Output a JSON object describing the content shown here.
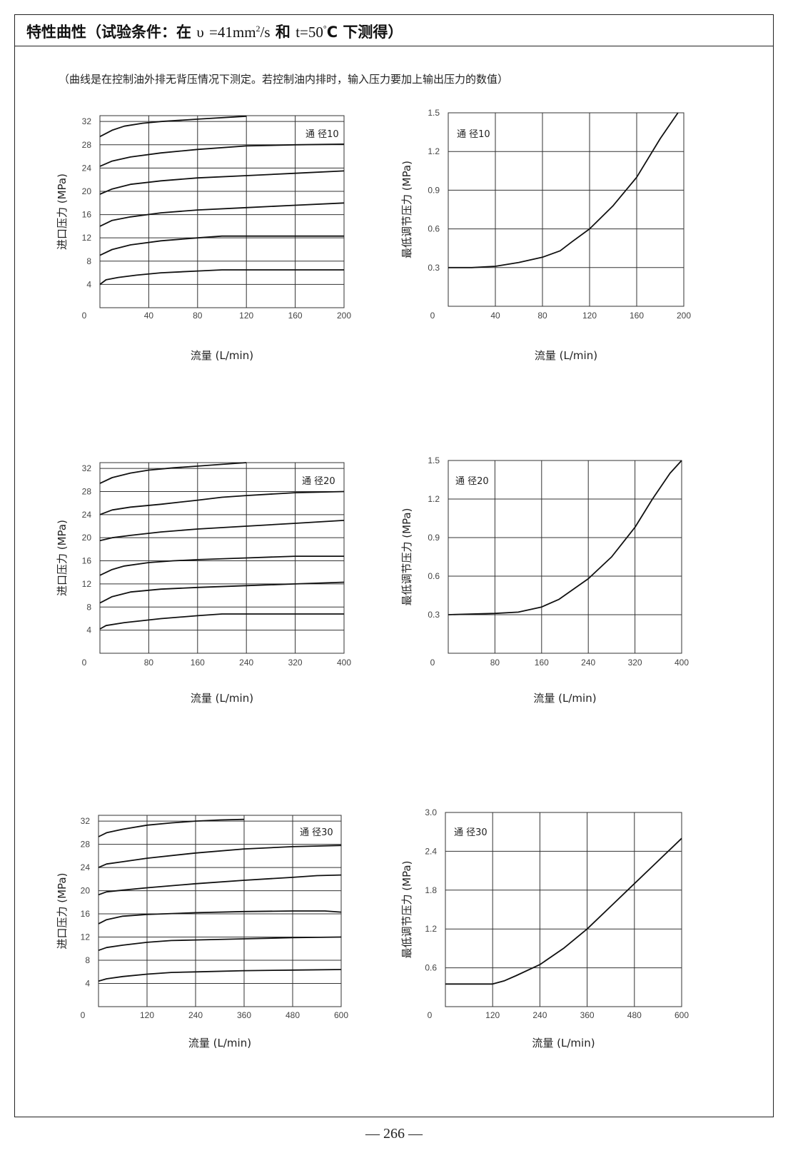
{
  "header": {
    "title_prefix": "特性曲性（试验条件：在",
    "nu": "υ",
    "nu_value": "=41mm",
    "nu_sup": "2",
    "nu_unit": "/s",
    "and": "和",
    "t_value": "t=50",
    "t_sup": "°",
    "t_unit": "C",
    "title_suffix": "下测得）"
  },
  "note": "（曲线是在控制油外排无背压情况下测定。若控制油内排时，输入压力要加上输出压力的数值）",
  "page_number": "— 266 —",
  "chart_data": [
    {
      "type": "line",
      "ylabel": "进口压力 (MPa)",
      "xlabel": "流量 (L/min)",
      "label": "通 径10",
      "x_ticks": [
        "0",
        "40",
        "80",
        "120",
        "160",
        "200"
      ],
      "y_ticks": [
        "4",
        "8",
        "12",
        "16",
        "20",
        "24",
        "28",
        "32"
      ],
      "xlim": [
        0,
        200
      ],
      "ylim": [
        0,
        33
      ],
      "series": [
        {
          "x": [
            0,
            10,
            20,
            35,
            50,
            80,
            120
          ],
          "y": [
            29.4,
            30.5,
            31.2,
            31.7,
            32.0,
            32.4,
            32.9
          ]
        },
        {
          "x": [
            0,
            10,
            25,
            50,
            80,
            120,
            160,
            200
          ],
          "y": [
            24.3,
            25.2,
            25.9,
            26.6,
            27.2,
            27.8,
            28.0,
            28.1
          ]
        },
        {
          "x": [
            0,
            10,
            25,
            50,
            80,
            120,
            160,
            200
          ],
          "y": [
            19.5,
            20.4,
            21.2,
            21.8,
            22.3,
            22.7,
            23.1,
            23.5
          ]
        },
        {
          "x": [
            0,
            10,
            25,
            50,
            80,
            120,
            160,
            200
          ],
          "y": [
            14.0,
            15.0,
            15.6,
            16.3,
            16.8,
            17.2,
            17.6,
            18.0
          ]
        },
        {
          "x": [
            0,
            10,
            25,
            50,
            80,
            100,
            120,
            160,
            200
          ],
          "y": [
            9.0,
            10.0,
            10.8,
            11.5,
            12.0,
            12.3,
            12.3,
            12.3,
            12.3
          ]
        },
        {
          "x": [
            0,
            5,
            15,
            30,
            50,
            80,
            100,
            140,
            200
          ],
          "y": [
            4.0,
            4.8,
            5.2,
            5.6,
            6.0,
            6.3,
            6.5,
            6.5,
            6.5
          ]
        }
      ]
    },
    {
      "type": "line",
      "ylabel": "最低调节压力 (MPa)",
      "xlabel": "流量 (L/min)",
      "label": "通 径10",
      "x_ticks": [
        "0",
        "40",
        "80",
        "120",
        "160",
        "200"
      ],
      "y_ticks": [
        "0.3",
        "0.6",
        "0.9",
        "1.2",
        "1.5"
      ],
      "xlim": [
        0,
        200
      ],
      "ylim": [
        0,
        1.5
      ],
      "series": [
        {
          "x": [
            0,
            20,
            40,
            60,
            80,
            95,
            105,
            120,
            140,
            160,
            180,
            195
          ],
          "y": [
            0.3,
            0.3,
            0.31,
            0.34,
            0.38,
            0.43,
            0.5,
            0.6,
            0.78,
            1.0,
            1.3,
            1.5
          ]
        }
      ]
    },
    {
      "type": "line",
      "ylabel": "进口压力 (MPa)",
      "xlabel": "流量 (L/min)",
      "label": "通 径20",
      "x_ticks": [
        "0",
        "80",
        "160",
        "240",
        "320",
        "400"
      ],
      "y_ticks": [
        "4",
        "8",
        "12",
        "16",
        "20",
        "24",
        "28",
        "32"
      ],
      "xlim": [
        0,
        400
      ],
      "ylim": [
        0,
        33
      ],
      "series": [
        {
          "x": [
            0,
            20,
            50,
            80,
            120,
            160,
            200,
            240
          ],
          "y": [
            29.4,
            30.4,
            31.2,
            31.7,
            32.1,
            32.4,
            32.7,
            33.0
          ]
        },
        {
          "x": [
            0,
            20,
            50,
            100,
            160,
            200,
            240,
            320,
            400
          ],
          "y": [
            24.0,
            24.8,
            25.3,
            25.8,
            26.5,
            27.0,
            27.3,
            27.8,
            28.0
          ]
        },
        {
          "x": [
            0,
            20,
            50,
            100,
            160,
            240,
            320,
            400
          ],
          "y": [
            19.5,
            20.0,
            20.4,
            21.0,
            21.5,
            22.0,
            22.5,
            23.0
          ]
        },
        {
          "x": [
            0,
            20,
            40,
            80,
            120,
            160,
            240,
            320,
            400
          ],
          "y": [
            13.5,
            14.5,
            15.1,
            15.7,
            16.0,
            16.2,
            16.5,
            16.8,
            16.8
          ]
        },
        {
          "x": [
            0,
            20,
            50,
            100,
            160,
            240,
            320,
            400
          ],
          "y": [
            8.7,
            9.8,
            10.6,
            11.1,
            11.4,
            11.7,
            12.0,
            12.3
          ]
        },
        {
          "x": [
            0,
            10,
            40,
            100,
            160,
            200,
            240,
            320,
            400
          ],
          "y": [
            4.2,
            4.8,
            5.3,
            6.0,
            6.5,
            6.8,
            6.8,
            6.8,
            6.8
          ]
        }
      ]
    },
    {
      "type": "line",
      "ylabel": "最低调节压力 (MPa)",
      "xlabel": "流量 (L/min)",
      "label": "通 径20",
      "x_ticks": [
        "0",
        "80",
        "160",
        "240",
        "320",
        "400"
      ],
      "y_ticks": [
        "0.3",
        "0.6",
        "0.9",
        "1.2",
        "1.5"
      ],
      "xlim": [
        0,
        400
      ],
      "ylim": [
        0,
        1.5
      ],
      "series": [
        {
          "x": [
            0,
            80,
            120,
            160,
            190,
            240,
            280,
            320,
            350,
            380,
            400
          ],
          "y": [
            0.3,
            0.31,
            0.32,
            0.36,
            0.42,
            0.58,
            0.75,
            0.98,
            1.2,
            1.4,
            1.5
          ]
        }
      ]
    },
    {
      "type": "line",
      "ylabel": "进口压力 (MPa)",
      "xlabel": "流量 (L/min)",
      "label": "通 径30",
      "x_ticks": [
        "0",
        "120",
        "240",
        "360",
        "480",
        "600"
      ],
      "y_ticks": [
        "4",
        "8",
        "12",
        "16",
        "20",
        "24",
        "28",
        "32"
      ],
      "xlim": [
        0,
        600
      ],
      "ylim": [
        0,
        33
      ],
      "series": [
        {
          "x": [
            0,
            20,
            60,
            120,
            180,
            240,
            300,
            360
          ],
          "y": [
            29.3,
            30.0,
            30.6,
            31.3,
            31.7,
            32.0,
            32.2,
            32.3
          ]
        },
        {
          "x": [
            0,
            20,
            60,
            120,
            240,
            360,
            480,
            600
          ],
          "y": [
            24.0,
            24.6,
            25.0,
            25.6,
            26.5,
            27.2,
            27.6,
            27.8
          ]
        },
        {
          "x": [
            0,
            20,
            60,
            120,
            240,
            360,
            480,
            540,
            600
          ],
          "y": [
            19.3,
            19.8,
            20.1,
            20.5,
            21.2,
            21.8,
            22.3,
            22.6,
            22.7
          ]
        },
        {
          "x": [
            0,
            20,
            60,
            120,
            240,
            360,
            480,
            560,
            600
          ],
          "y": [
            14.3,
            15.0,
            15.6,
            15.9,
            16.2,
            16.4,
            16.5,
            16.5,
            16.3
          ]
        },
        {
          "x": [
            0,
            20,
            60,
            120,
            180,
            240,
            360,
            480,
            600
          ],
          "y": [
            9.7,
            10.2,
            10.6,
            11.1,
            11.4,
            11.5,
            11.7,
            11.9,
            12.0
          ]
        },
        {
          "x": [
            0,
            20,
            60,
            120,
            180,
            240,
            360,
            480,
            600
          ],
          "y": [
            4.4,
            4.8,
            5.2,
            5.6,
            5.9,
            6.0,
            6.2,
            6.3,
            6.4
          ]
        }
      ]
    },
    {
      "type": "line",
      "ylabel": "最低调节压力 (MPa)",
      "xlabel": "流量 (L/min)",
      "label": "通 径30",
      "x_ticks": [
        "0",
        "120",
        "240",
        "360",
        "480",
        "600"
      ],
      "y_ticks": [
        "0.6",
        "1.2",
        "1.8",
        "2.4",
        "3.0"
      ],
      "xlim": [
        0,
        600
      ],
      "ylim": [
        0,
        3.0
      ],
      "series": [
        {
          "x": [
            0,
            60,
            120,
            150,
            180,
            240,
            300,
            360,
            420,
            480,
            540,
            600
          ],
          "y": [
            0.35,
            0.35,
            0.35,
            0.4,
            0.48,
            0.65,
            0.9,
            1.2,
            1.55,
            1.9,
            2.25,
            2.6
          ]
        }
      ]
    }
  ]
}
